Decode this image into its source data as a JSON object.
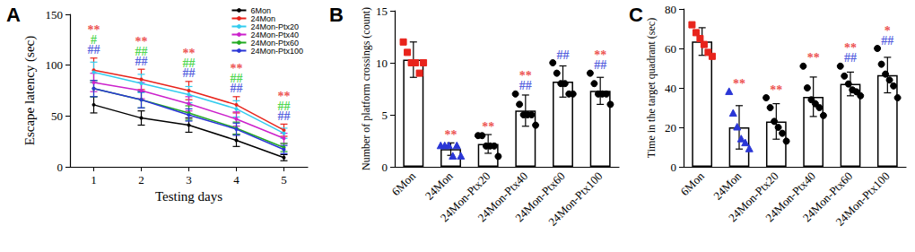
{
  "chart_data": [
    {
      "type": "line",
      "title": "A",
      "x_label": "Testing days",
      "y_label": "Escape latency (sec)",
      "categories": [
        "1",
        "2",
        "3",
        "4",
        "5"
      ],
      "ylim": [
        0,
        150
      ],
      "yticks": [
        0,
        50,
        100,
        150
      ],
      "grid": false,
      "legend": "top-right",
      "marker": "circle",
      "series": [
        {
          "name": "6Mon",
          "color": "#000000",
          "values": [
            61,
            48,
            41,
            26,
            9
          ],
          "errors": [
            8,
            7,
            7,
            6,
            3
          ]
        },
        {
          "name": "24Mon",
          "color": "#e8241c",
          "values": [
            95,
            86,
            75,
            61,
            36
          ],
          "errors": [
            12,
            10,
            9,
            8,
            6
          ]
        },
        {
          "name": "24Mon-Ptx20",
          "color": "#33ccee",
          "values": [
            93,
            82,
            71,
            57,
            33
          ],
          "errors": [
            10,
            9,
            8,
            8,
            5
          ]
        },
        {
          "name": "24Mon-Ptx40",
          "color": "#cc22cc",
          "values": [
            83,
            75,
            62,
            47,
            28
          ],
          "errors": [
            9,
            8,
            7,
            7,
            5
          ]
        },
        {
          "name": "24Mon-Ptx60",
          "color": "#22aa22",
          "values": [
            77,
            66,
            53,
            38,
            19
          ],
          "errors": [
            8,
            8,
            7,
            6,
            4
          ]
        },
        {
          "name": "24Mon-Ptx100",
          "color": "#2a36d6",
          "values": [
            77,
            66,
            51,
            37,
            17
          ],
          "errors": [
            8,
            8,
            6,
            6,
            4
          ]
        }
      ],
      "annotations": [
        {
          "category": "1",
          "marks": [
            {
              "text": "**",
              "color": "#e8241c"
            },
            {
              "text": "#",
              "color": "#22cc22"
            },
            {
              "text": "##",
              "color": "#2a36d6"
            }
          ]
        },
        {
          "category": "2",
          "marks": [
            {
              "text": "**",
              "color": "#e8241c"
            },
            {
              "text": "##",
              "color": "#22cc22"
            },
            {
              "text": "##",
              "color": "#2a36d6"
            }
          ]
        },
        {
          "category": "3",
          "marks": [
            {
              "text": "**",
              "color": "#e8241c"
            },
            {
              "text": "##",
              "color": "#22cc22"
            },
            {
              "text": "##",
              "color": "#2a36d6"
            }
          ]
        },
        {
          "category": "4",
          "marks": [
            {
              "text": "**",
              "color": "#e8241c"
            },
            {
              "text": "##",
              "color": "#22cc22"
            },
            {
              "text": "##",
              "color": "#2a36d6"
            }
          ]
        },
        {
          "category": "5",
          "marks": [
            {
              "text": "**",
              "color": "#e8241c"
            },
            {
              "text": "##",
              "color": "#22cc22"
            },
            {
              "text": "##",
              "color": "#2a36d6"
            }
          ]
        }
      ]
    },
    {
      "type": "bar",
      "title": "B",
      "y_label": "Number of platform crossings (count)",
      "categories": [
        "6Mon",
        "24Mon",
        "24Mon-Ptx20",
        "24Mon-Ptx40",
        "24Mon-Ptx60",
        "24Mon-Ptx100"
      ],
      "values": [
        10.3,
        1.7,
        2.2,
        5.4,
        8.2,
        7.3
      ],
      "errors": [
        1.7,
        0.6,
        0.9,
        1.5,
        1.5,
        1.3
      ],
      "color": "#ffffff",
      "ylim": [
        0,
        15
      ],
      "yticks": [
        0,
        5,
        10,
        15
      ],
      "grid": false,
      "points": [
        {
          "values": [
            12,
            11,
            10,
            10,
            9,
            10
          ],
          "color": "#e8241c",
          "marker": "square"
        },
        {
          "values": [
            2,
            2,
            2,
            1,
            2,
            1
          ],
          "color": "#2a36d6",
          "marker": "triangle"
        },
        {
          "values": [
            3,
            3,
            2,
            2,
            2,
            1
          ],
          "color": "#000000",
          "marker": "circle"
        },
        {
          "values": [
            7,
            6,
            5,
            5,
            5,
            4
          ],
          "color": "#000000",
          "marker": "circle"
        },
        {
          "values": [
            10,
            9,
            8,
            8,
            7,
            7
          ],
          "color": "#000000",
          "marker": "circle"
        },
        {
          "values": [
            9,
            8,
            7,
            7,
            7,
            6
          ],
          "color": "#000000",
          "marker": "circle"
        }
      ],
      "annotations": [
        {
          "category": "24Mon",
          "marks": [
            {
              "text": "**",
              "color": "#e8241c"
            }
          ]
        },
        {
          "category": "24Mon-Ptx20",
          "marks": [
            {
              "text": "**",
              "color": "#e8241c"
            }
          ]
        },
        {
          "category": "24Mon-Ptx40",
          "marks": [
            {
              "text": "**",
              "color": "#e8241c"
            },
            {
              "text": "##",
              "color": "#2a36d6"
            }
          ]
        },
        {
          "category": "24Mon-Ptx60",
          "marks": [
            {
              "text": "##",
              "color": "#2a36d6"
            }
          ]
        },
        {
          "category": "24Mon-Ptx100",
          "marks": [
            {
              "text": "**",
              "color": "#e8241c"
            },
            {
              "text": "##",
              "color": "#2a36d6"
            }
          ]
        }
      ]
    },
    {
      "type": "bar",
      "title": "C",
      "y_label": "Time in the target quadrant (sec)",
      "categories": [
        "6Mon",
        "24Mon",
        "24Mon-Ptx20",
        "24Mon-Ptx40",
        "24Mon-Ptx60",
        "24Mon-Ptx100"
      ],
      "values": [
        63.5,
        20,
        23,
        35.5,
        42,
        46.5
      ],
      "errors": [
        7,
        11,
        9,
        10,
        6,
        9
      ],
      "color": "#ffffff",
      "ylim": [
        0,
        80
      ],
      "yticks": [
        0,
        20,
        40,
        60,
        80
      ],
      "grid": false,
      "points": [
        {
          "values": [
            72,
            68,
            65,
            62,
            58,
            56
          ],
          "color": "#e8241c",
          "marker": "square"
        },
        {
          "values": [
            38,
            27,
            20,
            14,
            12,
            9
          ],
          "color": "#2a36d6",
          "marker": "triangle"
        },
        {
          "values": [
            35,
            30,
            23,
            20,
            17,
            13
          ],
          "color": "#000000",
          "marker": "circle"
        },
        {
          "values": [
            51,
            40,
            34,
            32,
            30,
            26
          ],
          "color": "#000000",
          "marker": "circle"
        },
        {
          "values": [
            51,
            46,
            42,
            39,
            38,
            36
          ],
          "color": "#000000",
          "marker": "circle"
        },
        {
          "values": [
            60,
            52,
            47,
            44,
            41,
            35
          ],
          "color": "#000000",
          "marker": "circle"
        }
      ],
      "annotations": [
        {
          "category": "24Mon",
          "marks": [
            {
              "text": "**",
              "color": "#e8241c"
            }
          ]
        },
        {
          "category": "24Mon-Ptx20",
          "marks": [
            {
              "text": "**",
              "color": "#e8241c"
            }
          ]
        },
        {
          "category": "24Mon-Ptx40",
          "marks": [
            {
              "text": "**",
              "color": "#e8241c"
            }
          ]
        },
        {
          "category": "24Mon-Ptx60",
          "marks": [
            {
              "text": "**",
              "color": "#e8241c"
            },
            {
              "text": "##",
              "color": "#2a36d6"
            }
          ]
        },
        {
          "category": "24Mon-Ptx100",
          "marks": [
            {
              "text": "*",
              "color": "#e8241c"
            },
            {
              "text": "##",
              "color": "#2a36d6"
            }
          ]
        }
      ]
    }
  ]
}
